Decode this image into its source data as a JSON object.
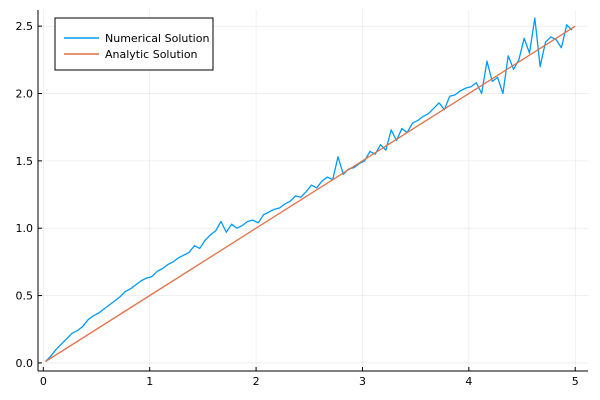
{
  "chart_data": {
    "type": "line",
    "title": "",
    "xlabel": "",
    "ylabel": "",
    "xlim": [
      -0.05,
      5.12
    ],
    "ylim": [
      -0.06,
      2.62
    ],
    "xticks": [
      0,
      1,
      2,
      3,
      4,
      5
    ],
    "xtick_labels": [
      "0",
      "1",
      "2",
      "3",
      "4",
      "5"
    ],
    "yticks": [
      0.0,
      0.5,
      1.0,
      1.5,
      2.0,
      2.5
    ],
    "ytick_labels": [
      "0.0",
      "0.5",
      "1.0",
      "1.5",
      "2.0",
      "2.5"
    ],
    "grid": true,
    "legend_position": "top-left",
    "series": [
      {
        "name": "Numerical Solution",
        "color": "#009AFA",
        "x": [
          0.02,
          0.07,
          0.12,
          0.17,
          0.22,
          0.27,
          0.32,
          0.37,
          0.42,
          0.47,
          0.52,
          0.57,
          0.62,
          0.67,
          0.72,
          0.77,
          0.82,
          0.87,
          0.92,
          0.97,
          1.02,
          1.07,
          1.12,
          1.17,
          1.22,
          1.27,
          1.32,
          1.37,
          1.42,
          1.47,
          1.52,
          1.57,
          1.62,
          1.67,
          1.72,
          1.77,
          1.82,
          1.87,
          1.92,
          1.97,
          2.02,
          2.07,
          2.12,
          2.17,
          2.22,
          2.27,
          2.32,
          2.37,
          2.42,
          2.47,
          2.52,
          2.57,
          2.62,
          2.67,
          2.72,
          2.77,
          2.82,
          2.87,
          2.92,
          2.97,
          3.02,
          3.07,
          3.12,
          3.17,
          3.22,
          3.27,
          3.32,
          3.37,
          3.42,
          3.47,
          3.52,
          3.57,
          3.62,
          3.67,
          3.72,
          3.77,
          3.82,
          3.87,
          3.92,
          3.97,
          4.02,
          4.07,
          4.12,
          4.17,
          4.22,
          4.27,
          4.32,
          4.37,
          4.42,
          4.47,
          4.52,
          4.57,
          4.62,
          4.67,
          4.72,
          4.77,
          4.82,
          4.87,
          4.92,
          4.97
        ],
        "y": [
          0.01,
          0.05,
          0.1,
          0.14,
          0.18,
          0.22,
          0.24,
          0.27,
          0.32,
          0.35,
          0.37,
          0.4,
          0.43,
          0.46,
          0.49,
          0.53,
          0.55,
          0.58,
          0.61,
          0.63,
          0.64,
          0.68,
          0.7,
          0.73,
          0.75,
          0.78,
          0.8,
          0.82,
          0.87,
          0.85,
          0.91,
          0.95,
          0.98,
          1.05,
          0.97,
          1.03,
          1.0,
          1.02,
          1.05,
          1.06,
          1.04,
          1.1,
          1.12,
          1.14,
          1.15,
          1.18,
          1.2,
          1.24,
          1.23,
          1.27,
          1.32,
          1.3,
          1.35,
          1.38,
          1.36,
          1.53,
          1.4,
          1.44,
          1.45,
          1.48,
          1.5,
          1.57,
          1.55,
          1.62,
          1.58,
          1.73,
          1.65,
          1.74,
          1.71,
          1.78,
          1.8,
          1.83,
          1.85,
          1.89,
          1.93,
          1.88,
          1.98,
          1.99,
          2.02,
          2.04,
          2.05,
          2.08,
          2.0,
          2.24,
          2.09,
          2.12,
          2.0,
          2.28,
          2.18,
          2.25,
          2.41,
          2.3,
          2.56,
          2.2,
          2.38,
          2.42,
          2.4,
          2.34,
          2.51,
          2.47
        ]
      },
      {
        "name": "Analytic Solution",
        "color": "#E26F46",
        "x": [
          0.02,
          5.0
        ],
        "y": [
          0.01,
          2.5
        ]
      }
    ]
  }
}
